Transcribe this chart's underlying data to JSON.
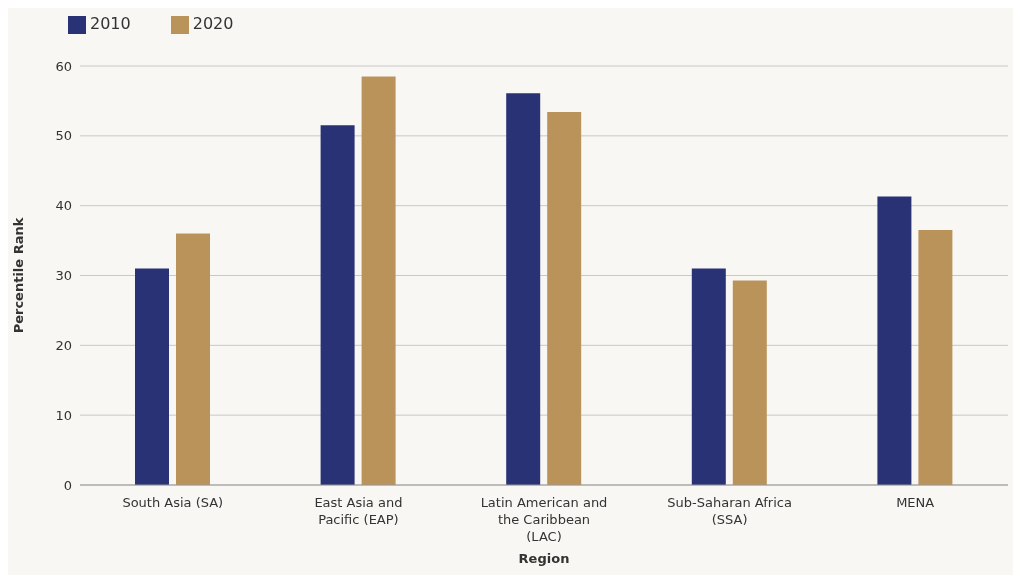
{
  "chart_data": {
    "type": "bar",
    "xlabel": "Region",
    "ylabel": "Percentile Rank",
    "categories": [
      "South Asia (SA)",
      "East Asia and Pacific (EAP)",
      "Latin American and the Caribbean (LAC)",
      "Sub-Saharan Africa (SSA)",
      "MENA"
    ],
    "series": [
      {
        "name": "2010",
        "color": "#283275",
        "values": [
          31,
          51.5,
          56.1,
          31,
          41.3
        ]
      },
      {
        "name": "2020",
        "color": "#b9935a",
        "values": [
          36,
          58.5,
          53.4,
          29.3,
          36.5
        ]
      }
    ],
    "ylim": [
      0,
      60
    ],
    "yticks": [
      0,
      10,
      20,
      30,
      40,
      50,
      60
    ],
    "grid": "y",
    "legend": "top left"
  }
}
